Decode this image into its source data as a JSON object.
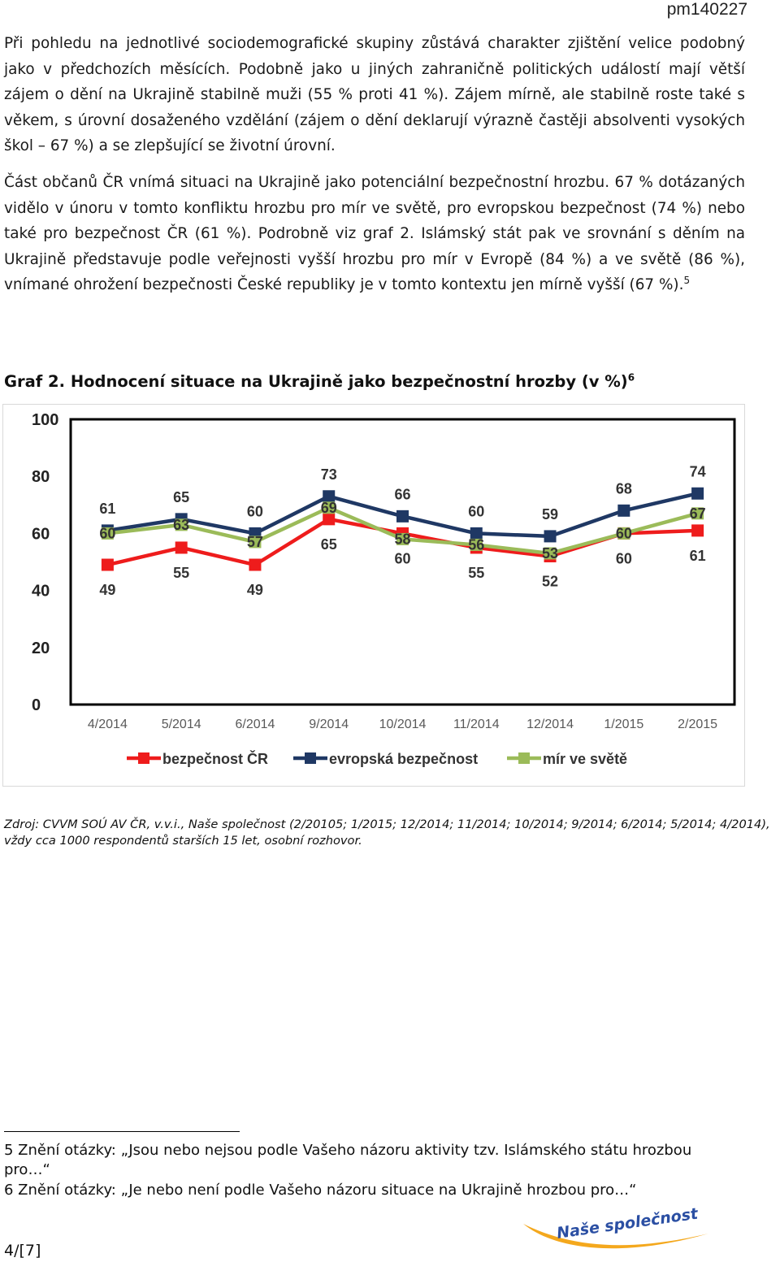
{
  "header": {
    "doc_code": "pm140227"
  },
  "paragraphs": {
    "p1": "Při pohledu na jednotlivé sociodemografické skupiny zůstává charakter zjištění velice podobný jako v předchozích měsících. Podobně jako u jiných zahraničně politických událostí mají větší zájem o dění na Ukrajině stabilně muži (55 % proti 41 %). Zájem mírně, ale stabilně roste také s věkem, s úrovní dosaženého vzdělání (zájem o dění deklarují výrazně častěji absolventi vysokých škol – 67 %) a se zlepšující se životní úrovní.",
    "p2": "Část občanů ČR vnímá situaci na Ukrajině jako potenciální bezpečnostní hrozbu. 67 % dotázaných vidělo v únoru v tomto konfliktu hrozbu pro mír ve světě, pro evropskou bezpečnost (74 %) nebo také pro bezpečnost ČR (61 %). Podrobně viz graf 2. Islámský stát pak ve srovnání s děním na Ukrajině představuje podle veřejnosti vyšší hrozbu pro mír v Evropě (84 %) a ve světě (86 %), vnímané ohrožení bezpečnosti České republiky je v tomto kontextu jen mírně vyšší (67 %).",
    "p2_footnote_ref": "5"
  },
  "chart_title": {
    "text": "Graf 2. Hodnocení situace na Ukrajině jako bezpečnostní hrozby (v %)",
    "footnote_ref": "6"
  },
  "chart_data": {
    "type": "line",
    "categories": [
      "4/2014",
      "5/2014",
      "6/2014",
      "9/2014",
      "10/2014",
      "11/2014",
      "12/2014",
      "1/2015",
      "2/2015"
    ],
    "series": [
      {
        "name": "bezpečnost ČR",
        "color": "#ee1c1c",
        "values": [
          49,
          55,
          49,
          65,
          60,
          55,
          52,
          60,
          61
        ]
      },
      {
        "name": "evropská bezpečnost",
        "color": "#1f3864",
        "values": [
          61,
          65,
          60,
          73,
          66,
          60,
          59,
          68,
          74
        ]
      },
      {
        "name": "mír ve světě",
        "color": "#9bbb59",
        "values": [
          60,
          63,
          57,
          69,
          58,
          56,
          53,
          60,
          67
        ]
      }
    ],
    "y_ticks": [
      "0",
      "20",
      "40",
      "60",
      "80",
      "100"
    ],
    "ylim": [
      0,
      100
    ],
    "grid": false,
    "legend_position": "bottom"
  },
  "source": "Zdroj: CVVM SOÚ AV ČR, v.v.i., Naše společnost (2/20105; 1/2015; 12/2014; 11/2014; 10/2014; 9/2014; 6/2014; 5/2014; 4/2014), vždy cca 1000 respondentů starších 15 let, osobní rozhovor.",
  "footnotes": [
    "5 Znění otázky: „Jsou nebo nejsou podle Vašeho názoru aktivity tzv. Islámského státu hrozbou pro…“",
    "6 Znění otázky: „Je nebo není podle Vašeho názoru situace na Ukrajině hrozbou pro…“"
  ],
  "page_number": "4/[7]",
  "logo": {
    "text": "Naše společnost",
    "color_text": "#2b4fa3",
    "color_swoosh": "#f4a81d"
  }
}
